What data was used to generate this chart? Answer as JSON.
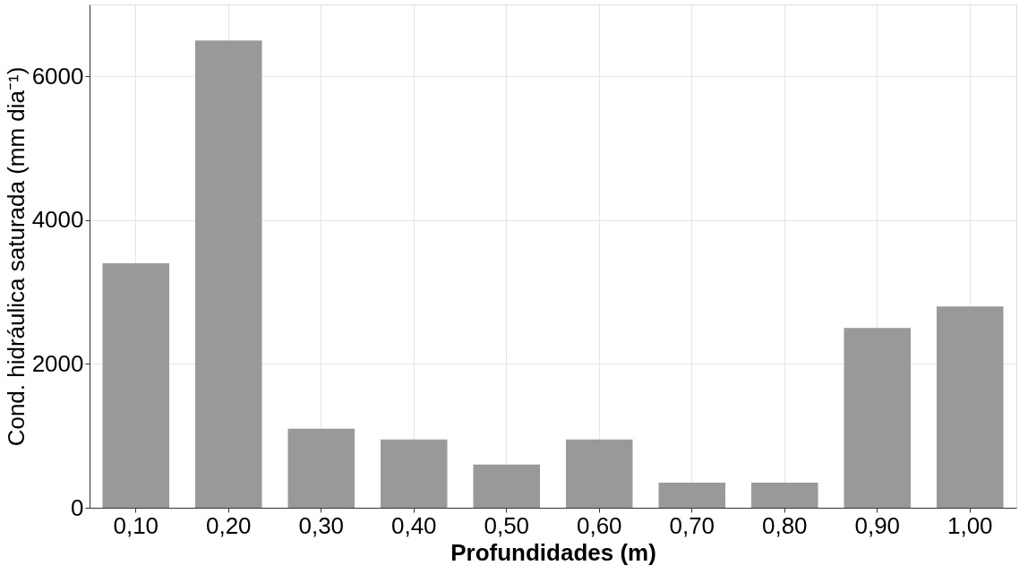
{
  "chart_data": {
    "type": "bar",
    "xlabel": "Profundidades (m)",
    "ylabel": "Cond. hidráulica saturada (mm dia⁻¹)",
    "categories": [
      "0,10",
      "0,20",
      "0,30",
      "0,40",
      "0,50",
      "0,60",
      "0,70",
      "0,80",
      "0,90",
      "1,00"
    ],
    "values": [
      3400,
      6500,
      1100,
      950,
      600,
      950,
      350,
      350,
      2500,
      2800
    ],
    "color": "#999999",
    "ylim": [
      0,
      7000
    ],
    "yticks": [
      0,
      2000,
      4000,
      6000
    ],
    "grid": true
  }
}
